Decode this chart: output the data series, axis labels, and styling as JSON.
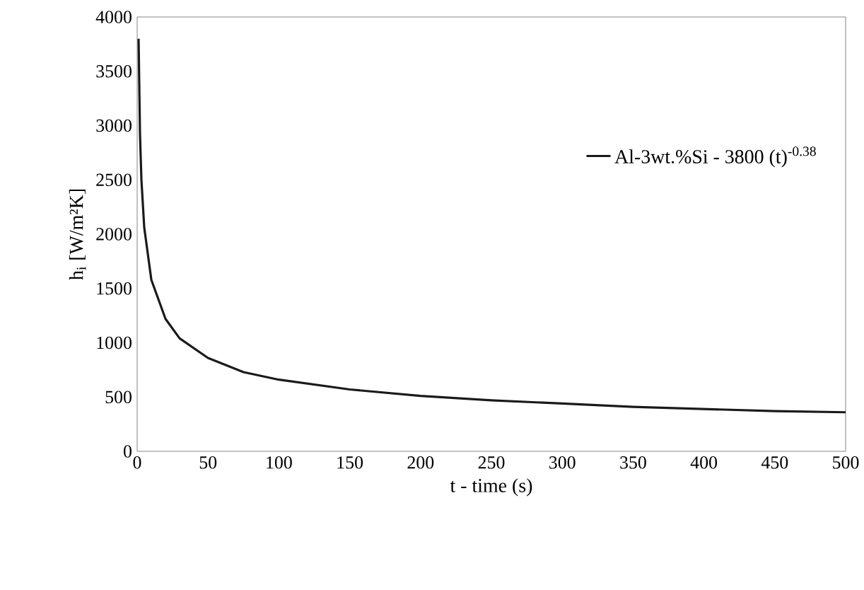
{
  "chart_data": {
    "type": "line",
    "xlabel": "t - time (s)",
    "ylabel": "h$_{i}$ [W/m²K]",
    "series": [
      {
        "name": "Al-3wt.%Si - 3800 (t)$^{-0.38}$",
        "color": "#1a1a1a",
        "x": [
          1,
          2,
          3,
          5,
          10,
          20,
          30,
          50,
          75,
          100,
          150,
          200,
          250,
          300,
          350,
          400,
          450,
          500
        ],
        "values": [
          3800,
          2920,
          2500,
          2060,
          1580,
          1220,
          1040,
          860,
          730,
          660,
          570,
          510,
          470,
          440,
          410,
          390,
          370,
          360
        ]
      }
    ],
    "xlim": [
      0,
      500
    ],
    "ylim": [
      0,
      4000
    ],
    "xticks": [
      0,
      50,
      100,
      150,
      200,
      250,
      300,
      350,
      400,
      450,
      500
    ],
    "yticks": [
      0,
      500,
      1000,
      1500,
      2000,
      2500,
      3000,
      3500,
      4000
    ],
    "legend": "right",
    "marker": "none",
    "line_style": "solid"
  }
}
